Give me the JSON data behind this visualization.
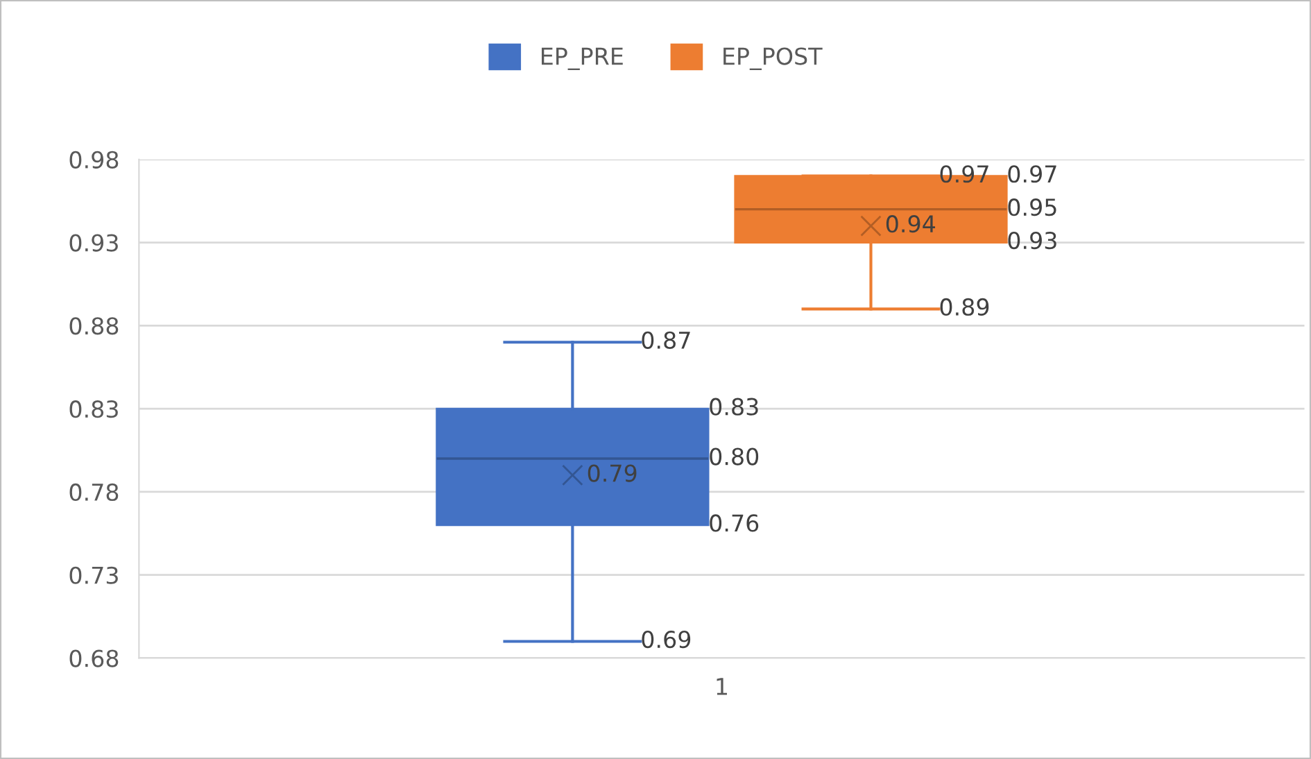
{
  "chart_data": {
    "type": "box",
    "categories": [
      "1"
    ],
    "series": [
      {
        "name": "EP_PRE",
        "color": "#4472c4",
        "boxes": [
          {
            "low": 0.69,
            "q1": 0.76,
            "median": 0.8,
            "q3": 0.83,
            "high": 0.87,
            "mean": 0.79
          }
        ],
        "value_labels": [
          [
            "0.69",
            "0.76",
            "0.80",
            "0.83",
            "0.87",
            "0.79"
          ]
        ]
      },
      {
        "name": "EP_POST",
        "color": "#ed7d31",
        "boxes": [
          {
            "low": 0.89,
            "q1": 0.93,
            "median": 0.95,
            "q3": 0.97,
            "high": 0.97,
            "mean": 0.94
          }
        ],
        "value_labels": [
          [
            "0.89",
            "0.93",
            "0.95",
            "0.97",
            "0.97",
            "0.94"
          ]
        ]
      }
    ],
    "ylim": [
      0.68,
      0.98
    ],
    "yticks": [
      0.68,
      0.73,
      0.78,
      0.83,
      0.88,
      0.93,
      0.98
    ],
    "grid": "y",
    "legend": "top"
  }
}
